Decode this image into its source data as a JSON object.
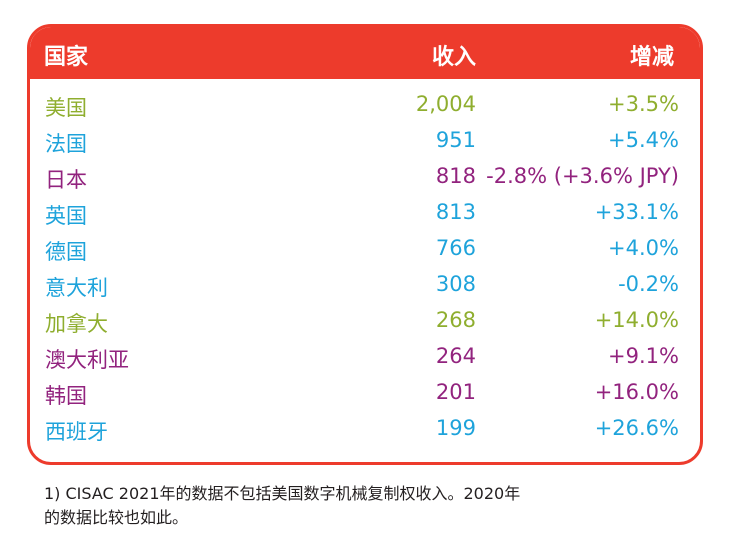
{
  "colors": {
    "header_bg": "#ed3b2c",
    "border": "#ed3b2c",
    "green": "#8fae2f",
    "blue": "#1ea3db",
    "purple": "#92237e"
  },
  "table": {
    "headers": {
      "country": "国家",
      "income": "收入",
      "change": "增减"
    },
    "rows": [
      {
        "country": "美国",
        "income": "2,004",
        "change": "+3.5%",
        "color": "green"
      },
      {
        "country": "法国",
        "income": "951",
        "change": "+5.4%",
        "color": "blue"
      },
      {
        "country": "日本",
        "income": "818",
        "change": "-2.8% (+3.6% JPY)",
        "color": "purple"
      },
      {
        "country": "英国",
        "income": "813",
        "change": "+33.1%",
        "color": "blue"
      },
      {
        "country": "德国",
        "income": "766",
        "change": "+4.0%",
        "color": "blue"
      },
      {
        "country": "意大利",
        "income": "308",
        "change": "-0.2%",
        "color": "blue"
      },
      {
        "country": "加拿大",
        "income": "268",
        "change": "+14.0%",
        "color": "green"
      },
      {
        "country": "澳大利亚",
        "income": "264",
        "change": "+9.1%",
        "color": "purple"
      },
      {
        "country": "韩国",
        "income": "201",
        "change": "+16.0%",
        "color": "purple"
      },
      {
        "country": "西班牙",
        "income": "199",
        "change": "+26.6%",
        "color": "blue"
      }
    ]
  },
  "footnote": {
    "line1": "1) CISAC 2021年的数据不包括美国数字机械复制权收入。2020年",
    "line2": "的数据比较也如此。"
  }
}
